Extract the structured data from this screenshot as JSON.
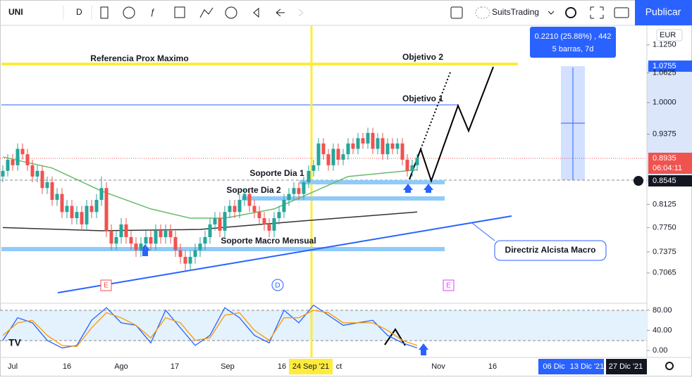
{
  "toolbar": {
    "symbol": "UNI",
    "interval": "D",
    "account": "SuitsTrading",
    "publish": "Publicar"
  },
  "measure": {
    "line1": "0.2210 (25.88%) , 442",
    "line2": "5 barras, 7d"
  },
  "currency": "EUR",
  "annotations": {
    "ref": "Referencia Prox Maximo",
    "obj2": "Objetivo 2",
    "obj1": "Objetivo 1",
    "sd1": "Soporte Dia 1",
    "sd2": "Soporte Dia 2",
    "smm": "Soporte Macro Mensual",
    "dir": "Directriz Alcista Macro"
  },
  "events": [
    "E",
    "D",
    "E"
  ],
  "price_badges": {
    "target": "1.0755",
    "last": "0.8935",
    "countdown": "06:04:11",
    "cursor": "0.8545"
  },
  "time_axis": [
    "Jul",
    "16",
    "Ago",
    "17",
    "Sep",
    "16",
    "24 Sep '21",
    "ct",
    "Nov",
    "16",
    "06 Dic",
    "13 Dic '21",
    "27 Dic '21"
  ],
  "chart_data": {
    "type": "candlestick",
    "log_scale": true,
    "up_color": "#26a69a",
    "down_color": "#ef5350",
    "ylim": [
      0.665,
      1.169
    ],
    "yticks": [
      {
        "value": 1.125,
        "label": "1.1250"
      },
      {
        "value": 1.0625,
        "label": "1.0625"
      },
      {
        "value": 1.0,
        "label": "1.0000"
      },
      {
        "value": 0.9375,
        "label": "0.9375"
      },
      {
        "value": 0.8125,
        "label": "0.8125"
      },
      {
        "value": 0.775,
        "label": "0.7750"
      },
      {
        "value": 0.7375,
        "label": "0.7375"
      },
      {
        "value": 0.7065,
        "label": "0.7065"
      }
    ],
    "candles": [
      [
        0.86,
        0.88,
        0.85,
        0.87
      ],
      [
        0.87,
        0.9,
        0.86,
        0.89
      ],
      [
        0.89,
        0.9,
        0.87,
        0.88
      ],
      [
        0.88,
        0.92,
        0.87,
        0.91
      ],
      [
        0.91,
        0.92,
        0.89,
        0.9
      ],
      [
        0.9,
        0.91,
        0.87,
        0.88
      ],
      [
        0.88,
        0.89,
        0.85,
        0.86
      ],
      [
        0.86,
        0.88,
        0.85,
        0.87
      ],
      [
        0.87,
        0.88,
        0.83,
        0.84
      ],
      [
        0.84,
        0.86,
        0.83,
        0.85
      ],
      [
        0.85,
        0.86,
        0.81,
        0.82
      ],
      [
        0.82,
        0.84,
        0.81,
        0.83
      ],
      [
        0.83,
        0.84,
        0.79,
        0.8
      ],
      [
        0.8,
        0.82,
        0.79,
        0.81
      ],
      [
        0.81,
        0.82,
        0.78,
        0.79
      ],
      [
        0.79,
        0.81,
        0.78,
        0.8
      ],
      [
        0.8,
        0.81,
        0.77,
        0.78
      ],
      [
        0.78,
        0.82,
        0.77,
        0.81
      ],
      [
        0.81,
        0.82,
        0.79,
        0.8
      ],
      [
        0.8,
        0.83,
        0.79,
        0.82
      ],
      [
        0.82,
        0.86,
        0.81,
        0.84
      ],
      [
        0.84,
        0.85,
        0.76,
        0.77
      ],
      [
        0.77,
        0.78,
        0.74,
        0.75
      ],
      [
        0.75,
        0.77,
        0.74,
        0.76
      ],
      [
        0.76,
        0.79,
        0.75,
        0.78
      ],
      [
        0.78,
        0.79,
        0.75,
        0.76
      ],
      [
        0.76,
        0.77,
        0.74,
        0.75
      ],
      [
        0.75,
        0.76,
        0.73,
        0.74
      ],
      [
        0.74,
        0.76,
        0.73,
        0.75
      ],
      [
        0.75,
        0.77,
        0.74,
        0.76
      ],
      [
        0.76,
        0.77,
        0.74,
        0.75
      ],
      [
        0.75,
        0.78,
        0.74,
        0.77
      ],
      [
        0.77,
        0.78,
        0.75,
        0.76
      ],
      [
        0.76,
        0.78,
        0.75,
        0.77
      ],
      [
        0.77,
        0.78,
        0.75,
        0.76
      ],
      [
        0.76,
        0.77,
        0.73,
        0.74
      ],
      [
        0.74,
        0.75,
        0.72,
        0.73
      ],
      [
        0.73,
        0.74,
        0.71,
        0.72
      ],
      [
        0.72,
        0.74,
        0.71,
        0.73
      ],
      [
        0.73,
        0.75,
        0.72,
        0.74
      ],
      [
        0.74,
        0.76,
        0.73,
        0.75
      ],
      [
        0.75,
        0.77,
        0.74,
        0.76
      ],
      [
        0.76,
        0.79,
        0.75,
        0.78
      ],
      [
        0.78,
        0.8,
        0.77,
        0.79
      ],
      [
        0.79,
        0.8,
        0.76,
        0.77
      ],
      [
        0.77,
        0.81,
        0.76,
        0.8
      ],
      [
        0.8,
        0.82,
        0.79,
        0.81
      ],
      [
        0.81,
        0.82,
        0.79,
        0.8
      ],
      [
        0.8,
        0.83,
        0.79,
        0.82
      ],
      [
        0.82,
        0.84,
        0.81,
        0.83
      ],
      [
        0.83,
        0.84,
        0.8,
        0.81
      ],
      [
        0.81,
        0.82,
        0.79,
        0.8
      ],
      [
        0.8,
        0.81,
        0.78,
        0.79
      ],
      [
        0.79,
        0.8,
        0.77,
        0.78
      ],
      [
        0.78,
        0.79,
        0.76,
        0.77
      ],
      [
        0.77,
        0.8,
        0.76,
        0.79
      ],
      [
        0.79,
        0.81,
        0.78,
        0.8
      ],
      [
        0.8,
        0.83,
        0.79,
        0.82
      ],
      [
        0.82,
        0.84,
        0.81,
        0.83
      ],
      [
        0.83,
        0.85,
        0.82,
        0.84
      ],
      [
        0.84,
        0.85,
        0.82,
        0.83
      ],
      [
        0.83,
        0.86,
        0.82,
        0.85
      ],
      [
        0.85,
        0.88,
        0.84,
        0.87
      ],
      [
        0.87,
        0.89,
        0.86,
        0.88
      ],
      [
        0.88,
        0.93,
        0.87,
        0.92
      ],
      [
        0.92,
        0.93,
        0.89,
        0.9
      ],
      [
        0.9,
        0.91,
        0.87,
        0.88
      ],
      [
        0.88,
        0.92,
        0.87,
        0.91
      ],
      [
        0.91,
        0.92,
        0.88,
        0.89
      ],
      [
        0.89,
        0.91,
        0.88,
        0.9
      ],
      [
        0.9,
        0.93,
        0.89,
        0.92
      ],
      [
        0.92,
        0.93,
        0.9,
        0.91
      ],
      [
        0.91,
        0.94,
        0.9,
        0.93
      ],
      [
        0.93,
        0.94,
        0.91,
        0.92
      ],
      [
        0.92,
        0.95,
        0.91,
        0.94
      ],
      [
        0.94,
        0.95,
        0.9,
        0.91
      ],
      [
        0.91,
        0.94,
        0.9,
        0.93
      ],
      [
        0.93,
        0.94,
        0.89,
        0.9
      ],
      [
        0.9,
        0.93,
        0.89,
        0.92
      ],
      [
        0.92,
        0.93,
        0.9,
        0.91
      ],
      [
        0.91,
        0.93,
        0.9,
        0.92
      ],
      [
        0.92,
        0.93,
        0.88,
        0.89
      ],
      [
        0.89,
        0.9,
        0.86,
        0.87
      ],
      [
        0.87,
        0.89,
        0.86,
        0.88
      ],
      [
        0.88,
        0.9,
        0.87,
        0.8935
      ]
    ],
    "ma": [
      {
        "color": "#66bb6a",
        "x": [
          0,
          10,
          20,
          30,
          38,
          45,
          55,
          62,
          70,
          84
        ],
        "values": [
          0.895,
          0.875,
          0.835,
          0.805,
          0.79,
          0.79,
          0.805,
          0.83,
          0.86,
          0.872
        ]
      },
      {
        "color": "#333333",
        "x": [
          0,
          20,
          40,
          60,
          84
        ],
        "values": [
          0.775,
          0.77,
          0.772,
          0.785,
          0.8
        ]
      }
    ]
  },
  "indicator": {
    "type": "line",
    "ylim": [
      -14,
      91
    ],
    "yticks": [
      {
        "value": 80,
        "label": "80.00"
      },
      {
        "value": 40,
        "label": "40.00"
      },
      {
        "value": 0,
        "label": "0.00"
      }
    ],
    "x": [
      0,
      3,
      6,
      9,
      12,
      15,
      18,
      21,
      24,
      27,
      30,
      33,
      36,
      39,
      42,
      45,
      48,
      51,
      54,
      57,
      60,
      63,
      66,
      69,
      72,
      75,
      78,
      81,
      84
    ],
    "series": [
      {
        "color": "#2962ff",
        "values": [
          20,
          65,
          55,
          20,
          5,
          10,
          60,
          85,
          55,
          50,
          15,
          80,
          45,
          10,
          30,
          85,
          65,
          30,
          15,
          80,
          55,
          90,
          70,
          50,
          55,
          60,
          30,
          15,
          5
        ]
      },
      {
        "color": "#ff9800",
        "values": [
          30,
          55,
          60,
          30,
          10,
          8,
          45,
          75,
          65,
          50,
          25,
          65,
          55,
          20,
          25,
          70,
          75,
          40,
          20,
          65,
          65,
          80,
          75,
          55,
          55,
          55,
          40,
          20,
          10
        ]
      }
    ]
  }
}
